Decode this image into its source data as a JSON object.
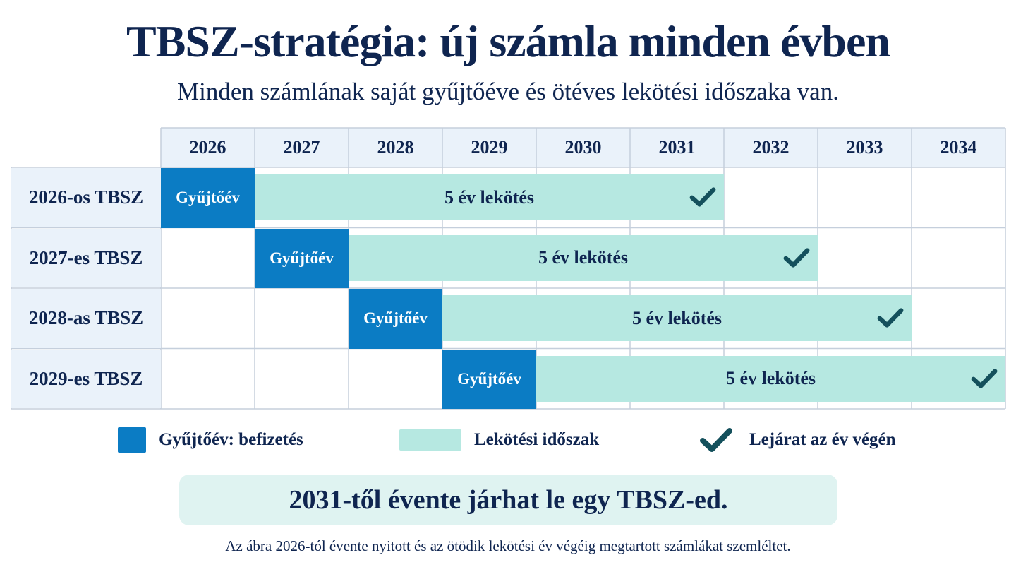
{
  "title": "TBSZ-stratégia: új számla minden évben",
  "subtitle": "Minden számlának saját gyűjtőéve és ötéves lekötési időszaka van.",
  "years": [
    "2026",
    "2027",
    "2028",
    "2029",
    "2030",
    "2031",
    "2032",
    "2033",
    "2034"
  ],
  "accounts": [
    {
      "label": "2026-os TBSZ",
      "collection_year": "2026",
      "collection_label": "Gyűjtőév",
      "lock_label": "5 év lekötés",
      "lock_years": 5,
      "matures_end_of": "2031"
    },
    {
      "label": "2027-es TBSZ",
      "collection_year": "2027",
      "collection_label": "Gyűjtőév",
      "lock_label": "5 év lekötés",
      "lock_years": 5,
      "matures_end_of": "2032"
    },
    {
      "label": "2028-as TBSZ",
      "collection_year": "2028",
      "collection_label": "Gyűjtőév",
      "lock_label": "5 év lekötés",
      "lock_years": 5,
      "matures_end_of": "2033"
    },
    {
      "label": "2029-es TBSZ",
      "collection_year": "2029",
      "collection_label": "Gyűjtőév",
      "lock_label": "5 év lekötés",
      "lock_years": 5,
      "matures_end_of": "2034"
    }
  ],
  "legend": {
    "collect": "Gyűjtőév: befizetés",
    "lock": "Lekötési időszak",
    "maturity": "Lejárat az év végén"
  },
  "callout": "2031-től évente járhat le egy TBSZ-ed.",
  "footnote": "Az ábra 2026-tól évente nyitott és az ötödik lekötési év végéig megtartott számlákat szemléltet.",
  "colors": {
    "navy": "#0f2550",
    "collection_blue": "#0b7cc4",
    "lock_teal": "#b6e8e1",
    "check_teal": "#14505c",
    "header_bg": "#eaf2fa",
    "callout_bg": "#dff3f1",
    "grid_line": "#c5cfdc"
  },
  "icons": {
    "maturity": "checkmark-icon"
  }
}
